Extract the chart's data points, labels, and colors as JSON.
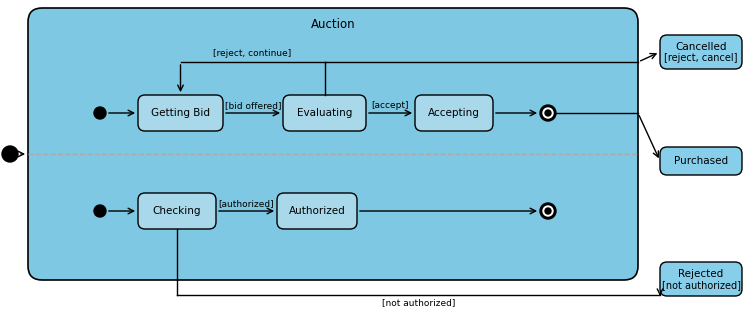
{
  "figure_bg": "#ffffff",
  "outer_box_fill": "#7EC8E3",
  "outer_box_edge": "#000000",
  "state_fill": "#A8D8EA",
  "state_edge": "#000000",
  "right_box_fill": "#87CEEA",
  "right_box_edge": "#000000",
  "dashed_line_color": "#888888",
  "title": "Auction",
  "label_reject_continue": "[reject, continue]",
  "label_bid_offered": "[bid offered]",
  "label_accept": "[accept]",
  "label_authorized": "[authorized]",
  "label_not_authorized": "[not authorized]",
  "state_getting_bid": "Getting Bid",
  "state_evaluating": "Evaluating",
  "state_accepting": "Accepting",
  "state_checking": "Checking",
  "state_authorized": "Authorized",
  "right_cancelled_l1": "Cancelled",
  "right_cancelled_l2": "[reject, cancel]",
  "right_purchased": "Purchased",
  "right_rejected_l1": "Rejected",
  "right_rejected_l2": "[not authorized]"
}
